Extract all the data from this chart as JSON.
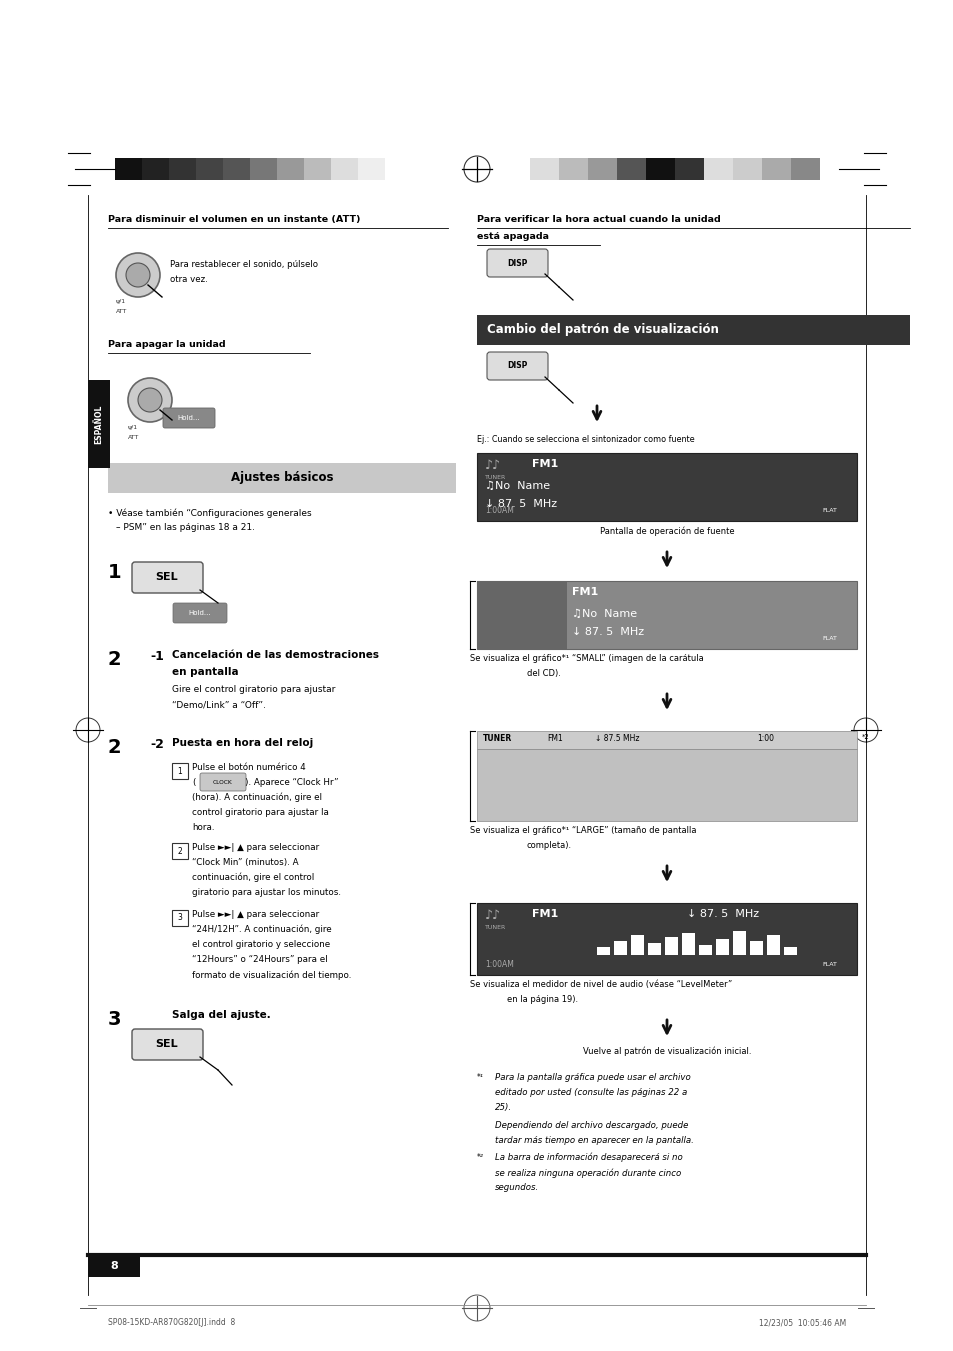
{
  "page_bg": "#ffffff",
  "page_width": 9.54,
  "page_height": 13.51,
  "section_title_left": "Ajustes básicos",
  "section_title_right": "Cambio del patrón de visualización",
  "espanol_label": "ESPAÑOL",
  "footer_left": "SP08-15KD-AR870G820[J].indd  8",
  "footer_right": "12/23/05  10:05:46 AM",
  "page_number": "8",
  "left_stripe_colors": [
    "#111111",
    "#222222",
    "#333333",
    "#444444",
    "#555555",
    "#777777",
    "#999999",
    "#bbbbbb",
    "#dddddd",
    "#eeeeee",
    "#ffffff"
  ],
  "right_stripe_colors": [
    "#dddddd",
    "#bbbbbb",
    "#999999",
    "#555555",
    "#111111",
    "#333333",
    "#dddddd",
    "#cccccc",
    "#aaaaaa",
    "#888888"
  ]
}
